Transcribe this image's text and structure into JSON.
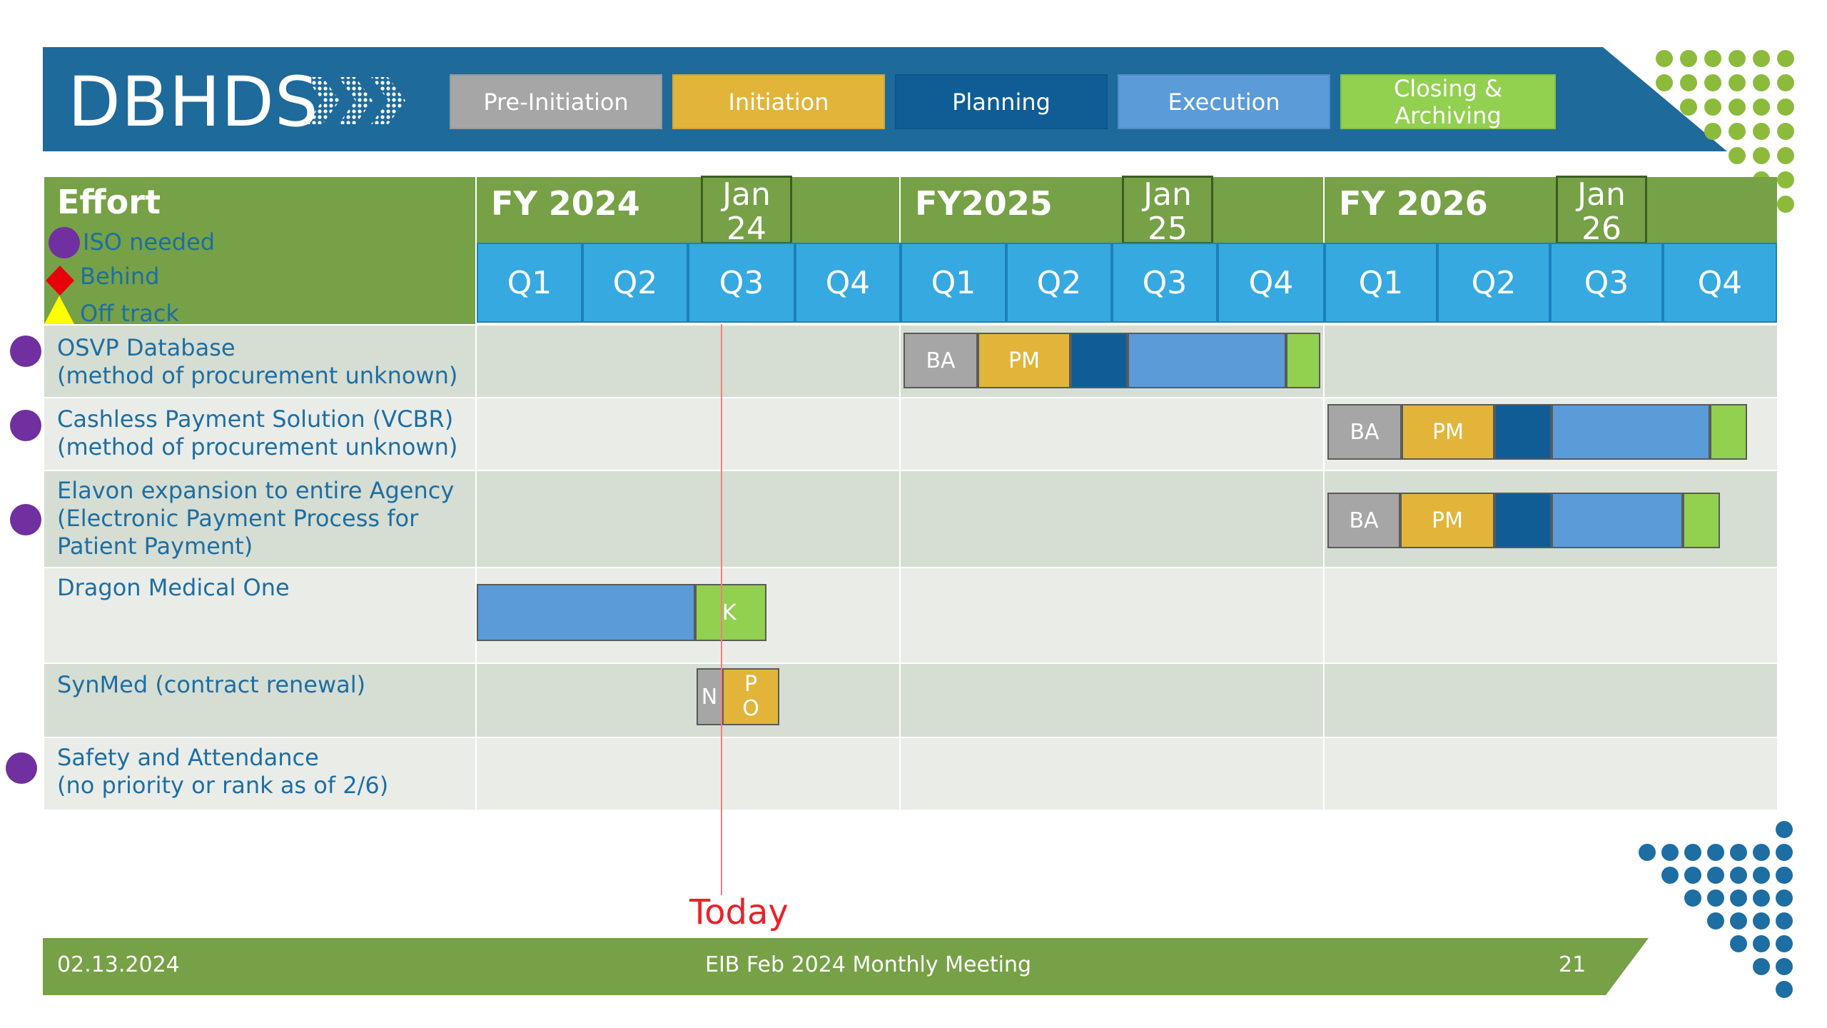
{
  "logo": {
    "text": "DBHDS"
  },
  "phases": [
    {
      "label": "Pre-Initiation",
      "color": "#a6a6a6"
    },
    {
      "label": "Initiation",
      "color": "#e2b53a"
    },
    {
      "label": "Planning",
      "color": "#105d96"
    },
    {
      "label": "Execution",
      "color": "#5a9bd8"
    },
    {
      "label": "Closing & Archiving",
      "color": "#92d050"
    }
  ],
  "gantt": {
    "effort_header": "Effort",
    "legend": [
      {
        "label": "ISO needed",
        "icon": "purple-circle-icon"
      },
      {
        "label": "Behind",
        "icon": "red-diamond-icon"
      },
      {
        "label": "Off track",
        "icon": "yellow-triangle-icon"
      }
    ],
    "fiscal_years": [
      {
        "label": "FY 2024",
        "jan_label": "Jan 24"
      },
      {
        "label": "FY2025",
        "jan_label": "Jan 25"
      },
      {
        "label": "FY 2026",
        "jan_label": "Jan 26"
      }
    ],
    "quarters": [
      "Q1",
      "Q2",
      "Q3",
      "Q4",
      "Q1",
      "Q2",
      "Q3",
      "Q4",
      "Q1",
      "Q2",
      "Q3",
      "Q4"
    ],
    "rows": [
      {
        "name": "OSVP Database",
        "sub": "(method of procurement unknown)",
        "iso_needed": true
      },
      {
        "name": "Cashless Payment Solution (VCBR)",
        "sub": "(method of procurement unknown)",
        "iso_needed": true
      },
      {
        "name": "Elavon expansion to entire Agency",
        "sub": "(Electronic Payment Process for",
        "sub2": "Patient Payment)",
        "iso_needed": true
      },
      {
        "name": "Dragon Medical One",
        "sub": "",
        "iso_needed": false
      },
      {
        "name": "SynMed (contract renewal)",
        "sub": "",
        "iso_needed": false
      },
      {
        "name": "Safety and Attendance",
        "sub": "(no priority or rank as of 2/6)",
        "iso_needed": true
      }
    ],
    "bar_labels": {
      "ba": "BA",
      "pm": "PM",
      "k": "K",
      "n": "N",
      "p": "P",
      "o": "O"
    },
    "today_label": "Today",
    "today_color": "#e8232a"
  },
  "footer": {
    "date": "02.13.2024",
    "title": "EIB Feb 2024 Monthly Meeting",
    "page": "21"
  },
  "colors": {
    "banner": "#1e6a9b",
    "green": "#76a146",
    "quarter": "#36a9e1",
    "row_dark": "#d6ddd2",
    "row_light": "#eaece8",
    "iso_purple": "#7030a0"
  }
}
